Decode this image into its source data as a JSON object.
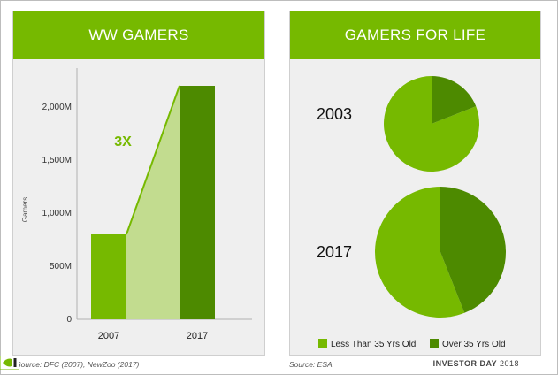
{
  "left_panel": {
    "title": "WW GAMERS",
    "source": "Source: DFC (2007), NewZoo (2017)"
  },
  "right_panel": {
    "title": "GAMERS FOR LIFE",
    "source": "Source: ESA"
  },
  "footer": {
    "brand": "INVESTOR DAY",
    "year": "2018"
  },
  "colors": {
    "light_green": "#76b900",
    "dark_green": "#4d8a00",
    "growth_fill": "#c2dc8f"
  },
  "chart_data": [
    {
      "type": "bar",
      "title": "WW GAMERS",
      "categories": [
        "2007",
        "2017"
      ],
      "values": [
        800,
        2200
      ],
      "ylabel": "Gamers",
      "ylim": [
        0,
        2200
      ],
      "yticks": [
        0,
        500,
        1000,
        1500,
        2000
      ],
      "ytick_labels": [
        "0",
        "500M",
        "1,000M",
        "1,500M",
        "2,000M"
      ],
      "annotation": "3X",
      "grid": false
    },
    {
      "type": "pie",
      "title": "GAMERS FOR LIFE",
      "pies": [
        {
          "label": "2003",
          "values": [
            81,
            19
          ]
        },
        {
          "label": "2017",
          "values": [
            56,
            44
          ]
        }
      ],
      "legend": [
        "Less Than 35 Yrs Old",
        "Over 35 Yrs Old"
      ],
      "legend_position": "bottom"
    }
  ]
}
